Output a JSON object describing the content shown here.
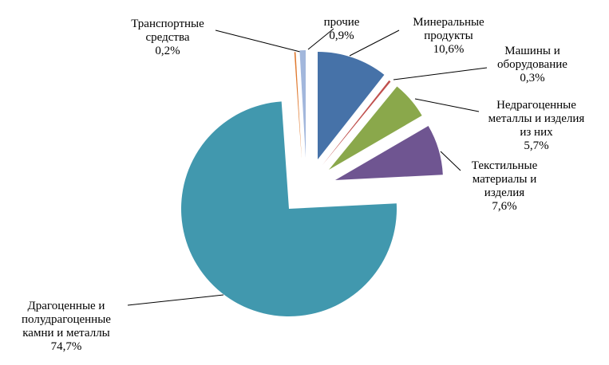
{
  "chart_data": {
    "type": "pie",
    "exploded": true,
    "slices": [
      {
        "label": "Минеральные\nпродукты",
        "value": 10.6,
        "value_label": "10,6%",
        "color": "#4672a8"
      },
      {
        "label": "Машины и\nоборудование",
        "value": 0.3,
        "value_label": "0,3%",
        "color": "#c0504d"
      },
      {
        "label": "Недрагоценные\nметаллы и изделия\nиз них",
        "value": 5.7,
        "value_label": "5,7%",
        "color": "#8aa84b"
      },
      {
        "label": "Текстильные\nматериалы и\nизделия",
        "value": 7.6,
        "value_label": "7,6%",
        "color": "#6f5591"
      },
      {
        "label": "Драгоценные и\nполудрагоценные\nкамни и металлы",
        "value": 74.7,
        "value_label": "74,7%",
        "color": "#4198ae"
      },
      {
        "label": "Транспортные\nсредства",
        "value": 0.2,
        "value_label": "0,2%",
        "color": "#e07a30"
      },
      {
        "label": "прочие",
        "value": 0.9,
        "value_label": "0,9%",
        "color": "#a2b7dc"
      }
    ]
  }
}
